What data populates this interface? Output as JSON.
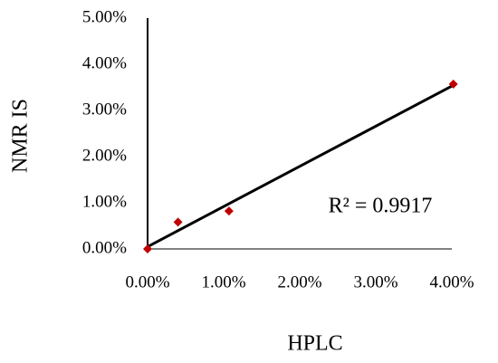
{
  "chart_data": {
    "type": "scatter",
    "x": [
      0,
      0.4,
      1.07,
      4.02
    ],
    "series": [
      {
        "color": "#c00000",
        "values": [
          0,
          0.58,
          0.82,
          3.57
        ]
      }
    ],
    "trendline": "linear",
    "annotation": "R² = 0.9917",
    "x_label": "HPLC",
    "y_label": "NMR IS",
    "xlim": [
      0,
      4
    ],
    "ylim": [
      0,
      5
    ],
    "xticks": [
      {
        "value": 0,
        "label": "0.00%"
      },
      {
        "value": 1,
        "label": "1.00%"
      },
      {
        "value": 2,
        "label": "2.00%"
      },
      {
        "value": 3,
        "label": "3.00%"
      },
      {
        "value": 4,
        "label": "4.00%"
      }
    ],
    "yticks": [
      {
        "value": 0,
        "label": "0.00%"
      },
      {
        "value": 1,
        "label": "1.00%"
      },
      {
        "value": 2,
        "label": "2.00%"
      },
      {
        "value": 3,
        "label": "3.00%"
      },
      {
        "value": 4,
        "label": "4.00%"
      },
      {
        "value": 5,
        "label": "5.00%"
      }
    ],
    "grid": false
  }
}
